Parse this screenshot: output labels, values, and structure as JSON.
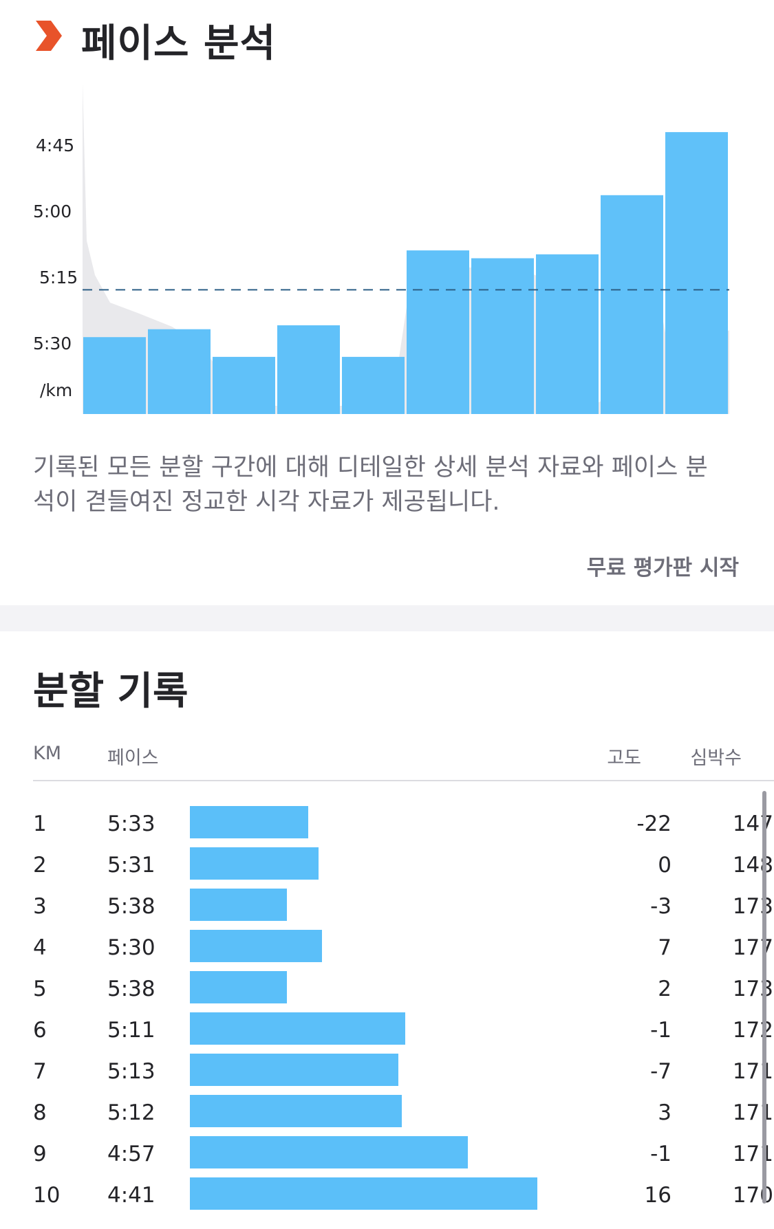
{
  "pace_section": {
    "title": "페이스 분석",
    "icon": "chevron-right-icon",
    "accent_color": "#e8532a",
    "description": "기록된 모든 분할 구간에 대해 디테일한 상세 분석 자료와 페이스 분석이 겯들여진 정교한 시각 자료가 제공됩니다.",
    "trial_link": "무료 평가판 시작"
  },
  "chart_data": {
    "type": "bar",
    "categories": [
      "1",
      "2",
      "3",
      "4",
      "5",
      "6",
      "7",
      "8",
      "9",
      "10"
    ],
    "values": [
      "5:33",
      "5:31",
      "5:38",
      "5:30",
      "5:38",
      "5:11",
      "5:13",
      "5:12",
      "4:57",
      "4:41"
    ],
    "values_seconds_per_km": [
      333,
      331,
      338,
      330,
      338,
      311,
      313,
      312,
      297,
      281
    ],
    "y_tick_labels": [
      "4:45",
      "5:00",
      "5:15",
      "5:30",
      "/km"
    ],
    "y_tick_seconds": [
      285,
      300,
      315,
      330
    ],
    "average_line_seconds": 321,
    "bar_color": "#5bbff9",
    "background_area_color": "#e9e9ec",
    "reference_line_color": "#2d5f86",
    "xlabel": "",
    "ylabel": "/km"
  },
  "splits_section": {
    "title": "분할 기록",
    "columns": {
      "km": "KM",
      "pace": "페이스",
      "elevation": "고도",
      "heart_rate": "심박수"
    },
    "rows": [
      {
        "km": "1",
        "pace": "5:33",
        "pace_fraction": 0.34,
        "elevation": "-22",
        "heart_rate": "147"
      },
      {
        "km": "2",
        "pace": "5:31",
        "pace_fraction": 0.37,
        "elevation": "0",
        "heart_rate": "148"
      },
      {
        "km": "3",
        "pace": "5:38",
        "pace_fraction": 0.28,
        "elevation": "-3",
        "heart_rate": "173"
      },
      {
        "km": "4",
        "pace": "5:30",
        "pace_fraction": 0.38,
        "elevation": "7",
        "heart_rate": "177"
      },
      {
        "km": "5",
        "pace": "5:38",
        "pace_fraction": 0.28,
        "elevation": "2",
        "heart_rate": "173"
      },
      {
        "km": "6",
        "pace": "5:11",
        "pace_fraction": 0.62,
        "elevation": "-1",
        "heart_rate": "172"
      },
      {
        "km": "7",
        "pace": "5:13",
        "pace_fraction": 0.6,
        "elevation": "-7",
        "heart_rate": "171"
      },
      {
        "km": "8",
        "pace": "5:12",
        "pace_fraction": 0.61,
        "elevation": "3",
        "heart_rate": "171"
      },
      {
        "km": "9",
        "pace": "4:57",
        "pace_fraction": 0.8,
        "elevation": "-1",
        "heart_rate": "171"
      },
      {
        "km": "10",
        "pace": "4:41",
        "pace_fraction": 1.0,
        "elevation": "16",
        "heart_rate": "170"
      }
    ]
  }
}
